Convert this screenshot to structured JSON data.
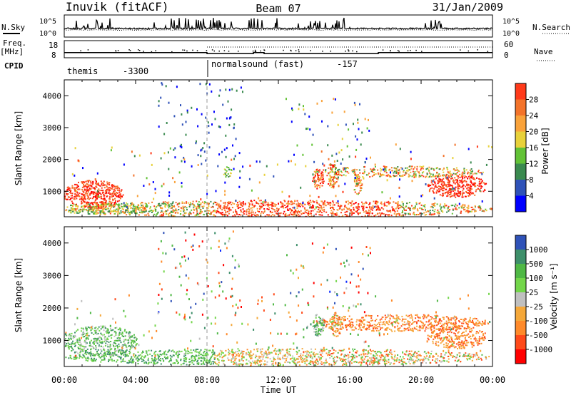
{
  "header": {
    "station": "Inuvik (fitACF)",
    "beam": "Beam 07",
    "date": "31/Jan/2009"
  },
  "panels": {
    "nsky_label": "N.Sky",
    "nsearch_label": "N.Search",
    "freq_label": "Freq.",
    "freq_unit": "[MHz]",
    "nave_label": "Nave",
    "cpid_label": "CPID"
  },
  "cpid": [
    {
      "name": "themis",
      "value": "-3300",
      "start_h": 0,
      "end_h": 8
    },
    {
      "name": "normalsound (fast)",
      "value": "-157",
      "start_h": 8,
      "end_h": 24
    }
  ],
  "colors": {
    "power": [
      "#0000ff",
      "#2f52b8",
      "#3a8a4f",
      "#62c236",
      "#e8d13a",
      "#f9a23a",
      "#f3732a",
      "#ff3a1a",
      "#ff0000"
    ],
    "velocity": [
      "#ff0000",
      "#ff4a1a",
      "#ff8a2a",
      "#f5a83a",
      "#c0c0c0",
      "#73d64a",
      "#4fb845",
      "#3d8f6a",
      "#2f52b8",
      "#0a28ff"
    ]
  },
  "chart_data": [
    {
      "type": "line",
      "name": "noise",
      "yticks_left": [
        "10^5",
        "10^0"
      ],
      "yticks_right": [
        "10^5",
        "10^0"
      ],
      "x_range": [
        0,
        24
      ]
    },
    {
      "type": "line",
      "name": "freq",
      "yticks_left": [
        "18",
        "8"
      ],
      "yticks_right": [
        "60",
        "0"
      ],
      "freq_steps": [
        {
          "x0": 0,
          "x1": 8,
          "y": 11
        },
        {
          "x0": 8,
          "x1": 10.6,
          "y": 10.4
        },
        {
          "x0": 10.6,
          "x1": 11.2,
          "y": 11
        },
        {
          "x0": 11.2,
          "x1": 17.6,
          "y": 10.4
        },
        {
          "x0": 17.6,
          "x1": 24,
          "y": 11
        }
      ]
    },
    {
      "type": "heatmap",
      "quantity": "power",
      "ylabel": "Slant Range [km]",
      "yticks": [
        "4000",
        "3000",
        "2000",
        "1000"
      ],
      "ylim": [
        200,
        4500
      ],
      "colorbar_label": "Power [dB]",
      "colorbar_ticks": [
        "28",
        "24",
        "20",
        "16",
        "12",
        "8",
        "4"
      ],
      "colorbar_range": [
        0,
        32
      ]
    },
    {
      "type": "heatmap",
      "quantity": "velocity",
      "ylabel": "Slant Range [km]",
      "yticks": [
        "4000",
        "3000",
        "2000",
        "1000"
      ],
      "ylim": [
        200,
        4500
      ],
      "colorbar_label": "Velocity [m s⁻¹]",
      "colorbar_ticks": [
        "1000",
        "500",
        "100",
        "25",
        "-25",
        "-100",
        "-500",
        "-1000"
      ],
      "xticks": [
        "00:00",
        "04:00",
        "08:00",
        "12:00",
        "16:00",
        "20:00",
        "00:00"
      ],
      "xlabel": "Time UT"
    }
  ]
}
